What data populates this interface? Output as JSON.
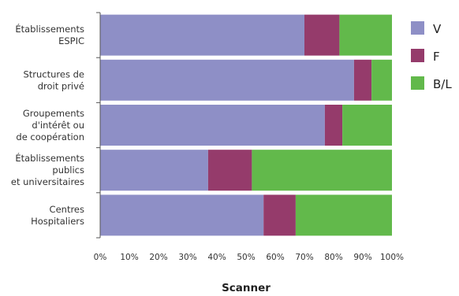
{
  "chart_data": {
    "type": "bar",
    "orientation": "horizontal",
    "stacked": true,
    "categories": [
      [
        "Établissements",
        "ESPIC"
      ],
      [
        "Structures de",
        "droit privé"
      ],
      [
        "Groupements",
        "d'intérêt ou",
        "de coopération"
      ],
      [
        "Établissements",
        "publics",
        "et universitaires"
      ],
      [
        "Centres",
        "Hospitaliers"
      ]
    ],
    "series": [
      {
        "name": "V",
        "color": "#8e8fc6",
        "values": [
          70,
          87,
          77,
          37,
          56
        ]
      },
      {
        "name": "F",
        "color": "#953b6b",
        "values": [
          12,
          6,
          6,
          15,
          11
        ]
      },
      {
        "name": "B/L",
        "color": "#62b94b",
        "values": [
          18,
          7,
          17,
          48,
          33
        ]
      }
    ],
    "xlim": [
      0,
      100
    ],
    "xticks": [
      "0%",
      "10%",
      "20%",
      "30%",
      "40%",
      "50%",
      "60%",
      "70%",
      "80%",
      "90%",
      "100%"
    ],
    "xlabel": "Scanner",
    "ylabel": "",
    "title": "",
    "legend_position": "right",
    "grid": false
  }
}
